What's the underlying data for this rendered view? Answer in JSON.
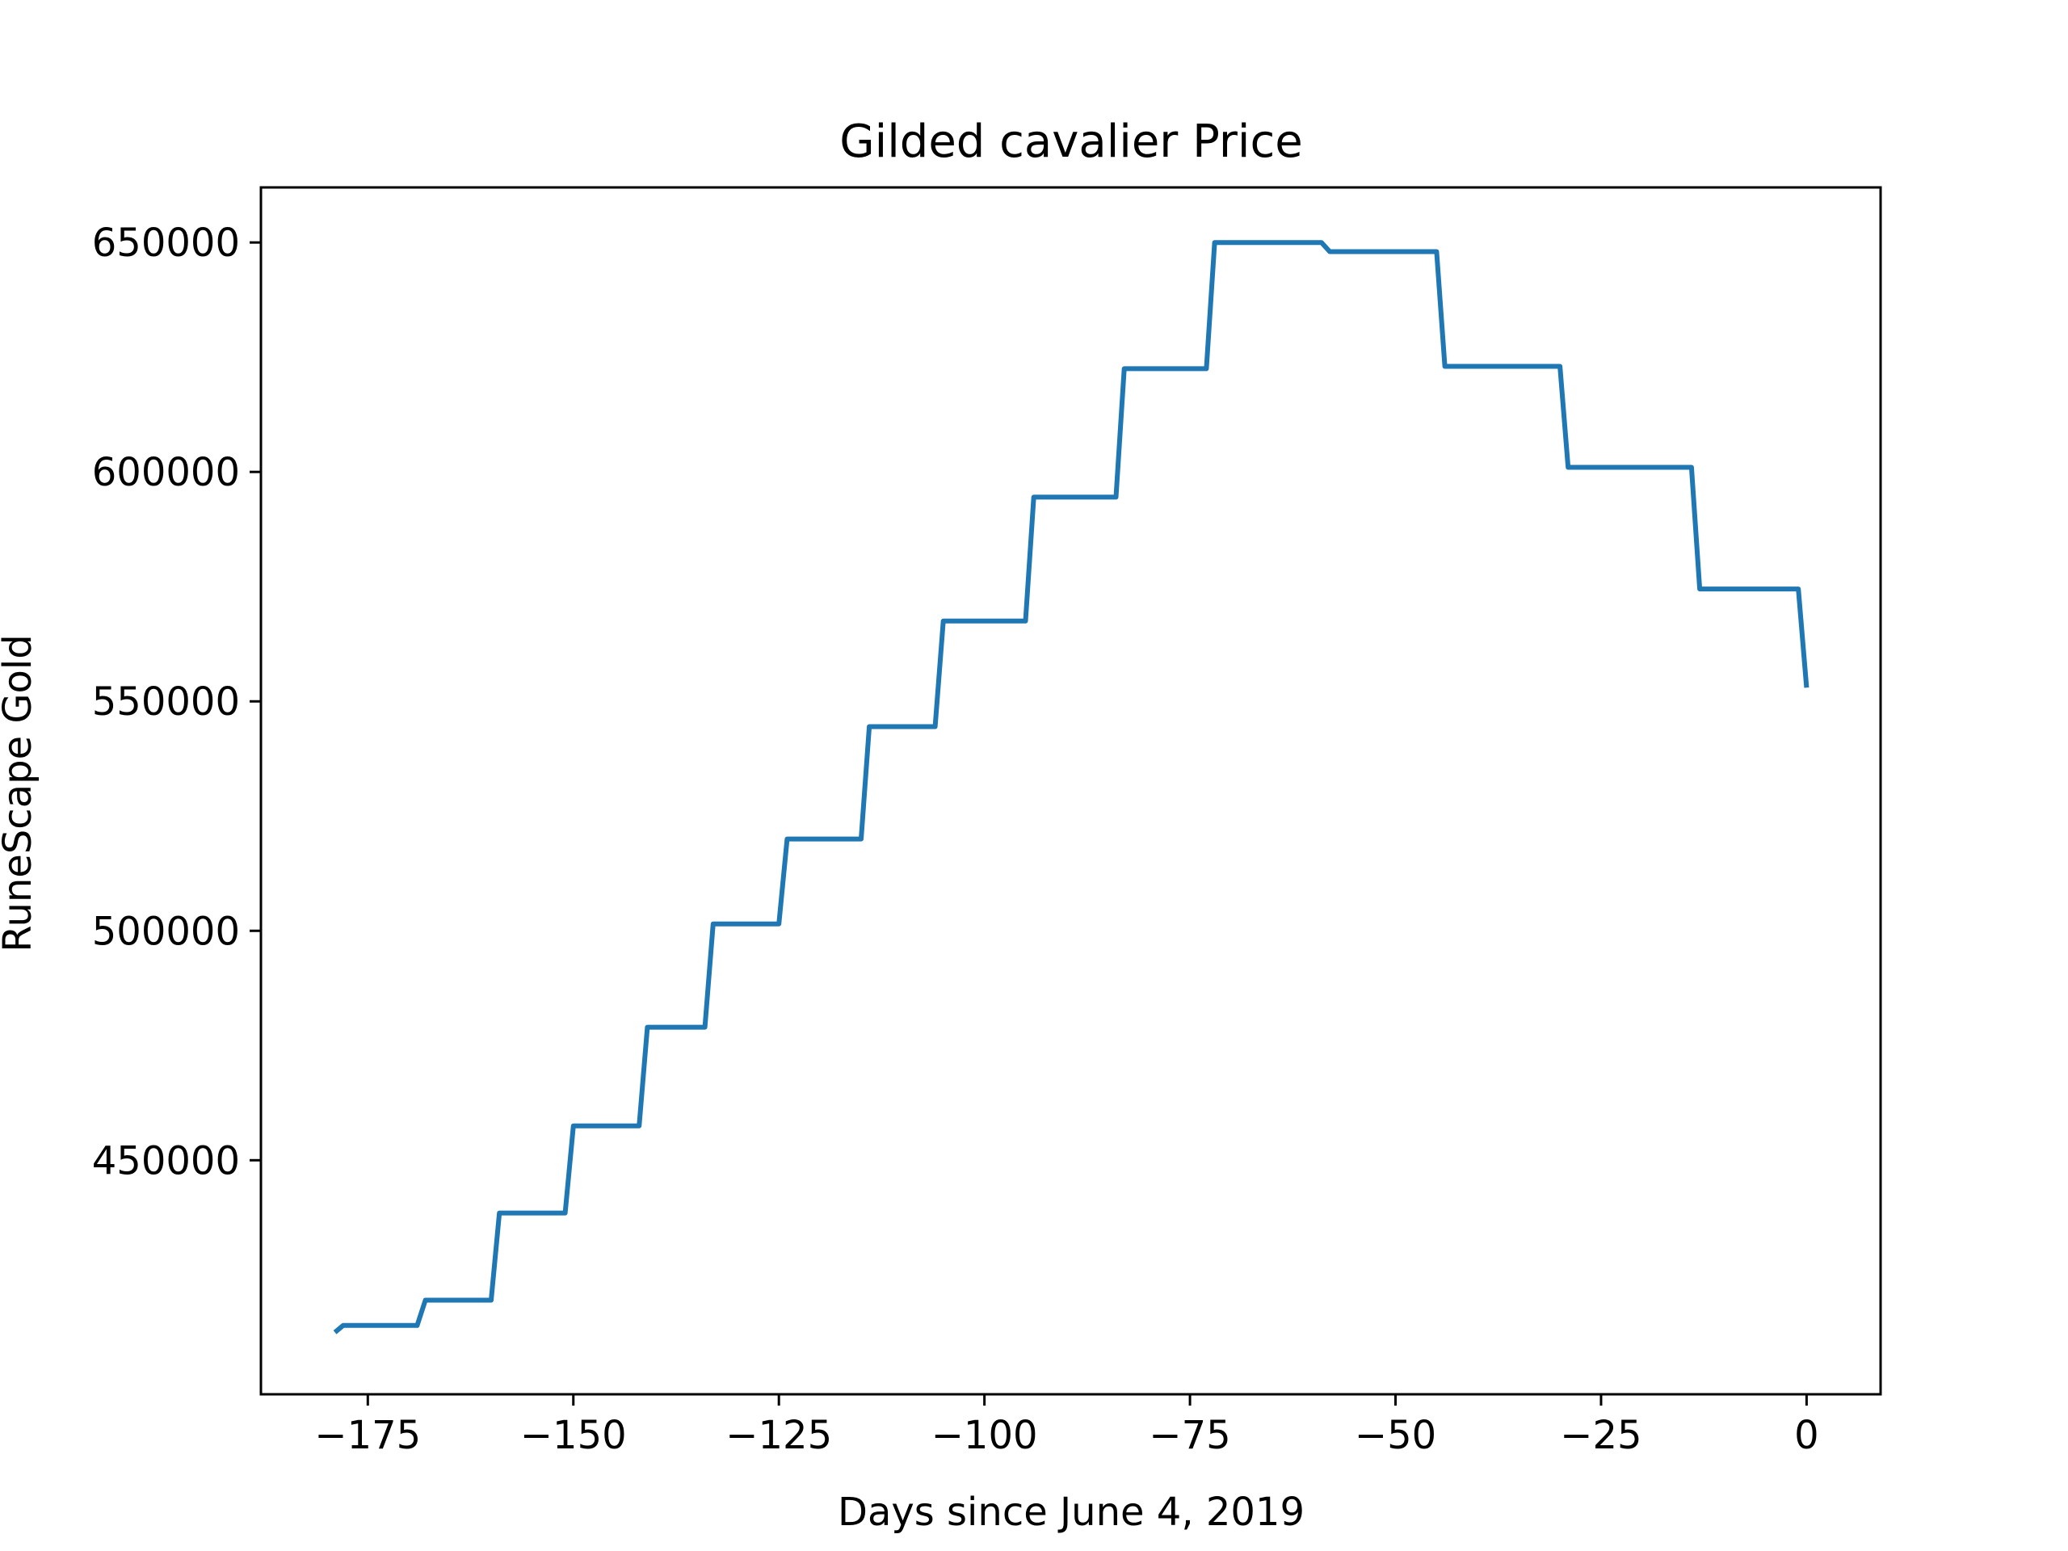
{
  "chart_data": {
    "type": "line",
    "title": "Gilded cavalier Price",
    "xlabel": "Days since June 4, 2019",
    "ylabel": "RuneScape Gold",
    "xlim": [
      -188,
      9
    ],
    "ylim": [
      399000,
      662000
    ],
    "xticks": [
      -175,
      -150,
      -125,
      -100,
      -75,
      -50,
      -25,
      0
    ],
    "xtick_labels": [
      "−175",
      "−150",
      "−125",
      "−100",
      "−75",
      "−50",
      "−25",
      "0"
    ],
    "yticks": [
      450000,
      500000,
      550000,
      600000,
      650000
    ],
    "ytick_labels": [
      "450000",
      "500000",
      "550000",
      "600000",
      "650000"
    ],
    "grid": false,
    "series": [
      {
        "color": "#1f77b4",
        "x": [
          -179,
          -178,
          -169,
          -168,
          -160,
          -159,
          -151,
          -150,
          -142,
          -141,
          -134,
          -133,
          -125,
          -124,
          -115,
          -114,
          -106,
          -105,
          -95,
          -94,
          -84,
          -83,
          -73,
          -72,
          -59,
          -58,
          -45,
          -44,
          -30,
          -29,
          -14,
          -13,
          -1,
          0
        ],
        "y": [
          412500,
          414000,
          414000,
          419500,
          419500,
          438500,
          438500,
          457500,
          457500,
          479000,
          479000,
          501500,
          501500,
          520000,
          520000,
          544500,
          544500,
          567500,
          567500,
          594500,
          594500,
          622500,
          622500,
          650000,
          650000,
          648000,
          648000,
          623000,
          623000,
          601000,
          601000,
          574500,
          574500,
          553000
        ]
      }
    ]
  }
}
